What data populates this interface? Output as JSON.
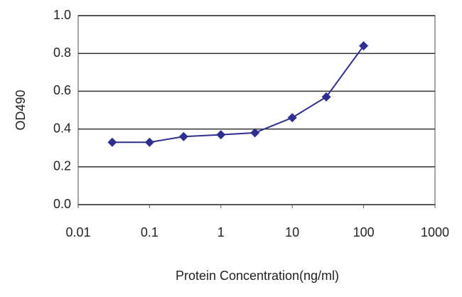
{
  "chart_data": {
    "type": "line",
    "xlabel": "Protein Concentration(ng/ml)",
    "ylabel": "OD490",
    "x": [
      0.03,
      0.1,
      0.3,
      1,
      3,
      10,
      30,
      100
    ],
    "values": [
      0.33,
      0.33,
      0.36,
      0.37,
      0.38,
      0.46,
      0.57,
      0.84
    ],
    "color": "#2f2f8f",
    "xscale": "log",
    "xlim": [
      0.01,
      1000
    ],
    "xticks": [
      0.01,
      0.1,
      1,
      10,
      100,
      1000
    ],
    "ylim": [
      0,
      1
    ],
    "yticks": [
      {
        "value": 0,
        "label": "0.0"
      },
      0.2,
      0.4,
      0.6,
      0.8,
      {
        "value": 1,
        "label": "1.0"
      }
    ],
    "grid": true
  }
}
